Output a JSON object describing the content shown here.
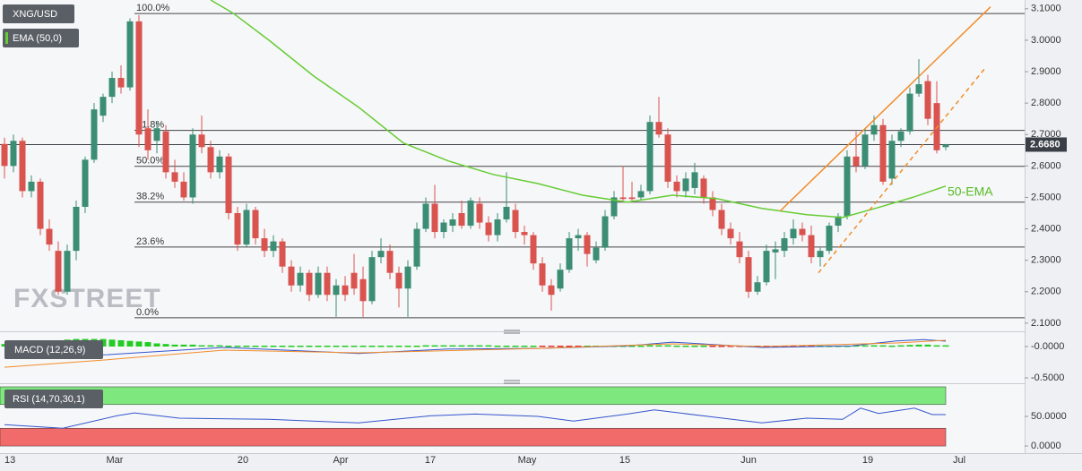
{
  "chart_data": [
    {
      "type": "candlestick",
      "title": "XNG/USD",
      "watermark": "FXSTREET",
      "up_color": "#3b8d73",
      "down_color": "#d9534f",
      "candles": [
        [
          2.67,
          2.69,
          2.56,
          2.6
        ],
        [
          2.6,
          2.7,
          2.58,
          2.68
        ],
        [
          2.68,
          2.69,
          2.5,
          2.52
        ],
        [
          2.52,
          2.57,
          2.5,
          2.55
        ],
        [
          2.55,
          2.56,
          2.38,
          2.4
        ],
        [
          2.4,
          2.43,
          2.33,
          2.35
        ],
        [
          2.33,
          2.36,
          2.19,
          2.2
        ],
        [
          2.2,
          2.35,
          2.19,
          2.33
        ],
        [
          2.33,
          2.49,
          2.3,
          2.47
        ],
        [
          2.47,
          2.63,
          2.45,
          2.62
        ],
        [
          2.62,
          2.8,
          2.61,
          2.78
        ],
        [
          2.76,
          2.83,
          2.74,
          2.82
        ],
        [
          2.82,
          2.9,
          2.8,
          2.88
        ],
        [
          2.88,
          2.92,
          2.83,
          2.85
        ],
        [
          2.85,
          3.07,
          2.84,
          3.06
        ],
        [
          3.06,
          3.08,
          2.66,
          2.7
        ],
        [
          2.72,
          2.78,
          2.62,
          2.65
        ],
        [
          2.68,
          2.74,
          2.64,
          2.72
        ],
        [
          2.71,
          2.73,
          2.56,
          2.58
        ],
        [
          2.58,
          2.62,
          2.53,
          2.55
        ],
        [
          2.55,
          2.58,
          2.49,
          2.5
        ],
        [
          2.5,
          2.72,
          2.48,
          2.7
        ],
        [
          2.7,
          2.76,
          2.64,
          2.66
        ],
        [
          2.66,
          2.68,
          2.56,
          2.58
        ],
        [
          2.58,
          2.65,
          2.56,
          2.63
        ],
        [
          2.63,
          2.64,
          2.43,
          2.45
        ],
        [
          2.45,
          2.47,
          2.33,
          2.35
        ],
        [
          2.35,
          2.48,
          2.34,
          2.46
        ],
        [
          2.46,
          2.47,
          2.35,
          2.37
        ],
        [
          2.37,
          2.4,
          2.31,
          2.33
        ],
        [
          2.33,
          2.38,
          2.31,
          2.36
        ],
        [
          2.36,
          2.37,
          2.26,
          2.28
        ],
        [
          2.28,
          2.3,
          2.2,
          2.22
        ],
        [
          2.22,
          2.28,
          2.2,
          2.26
        ],
        [
          2.26,
          2.27,
          2.17,
          2.19
        ],
        [
          2.19,
          2.28,
          2.18,
          2.26
        ],
        [
          2.26,
          2.28,
          2.17,
          2.19
        ],
        [
          2.19,
          2.24,
          2.12,
          2.22
        ],
        [
          2.22,
          2.25,
          2.17,
          2.19
        ],
        [
          2.26,
          2.32,
          2.19,
          2.21
        ],
        [
          2.24,
          2.28,
          2.12,
          2.17
        ],
        [
          2.17,
          2.33,
          2.16,
          2.31
        ],
        [
          2.31,
          2.37,
          2.29,
          2.33
        ],
        [
          2.33,
          2.35,
          2.24,
          2.26
        ],
        [
          2.26,
          2.28,
          2.15,
          2.21
        ],
        [
          2.21,
          2.3,
          2.12,
          2.28
        ],
        [
          2.28,
          2.42,
          2.27,
          2.4
        ],
        [
          2.4,
          2.5,
          2.39,
          2.48
        ],
        [
          2.48,
          2.54,
          2.37,
          2.39
        ],
        [
          2.39,
          2.43,
          2.37,
          2.42
        ],
        [
          2.41,
          2.45,
          2.39,
          2.43
        ],
        [
          2.45,
          2.49,
          2.4,
          2.41
        ],
        [
          2.41,
          2.5,
          2.4,
          2.49
        ],
        [
          2.48,
          2.5,
          2.4,
          2.42
        ],
        [
          2.42,
          2.44,
          2.36,
          2.38
        ],
        [
          2.38,
          2.45,
          2.36,
          2.43
        ],
        [
          2.43,
          2.58,
          2.42,
          2.47
        ],
        [
          2.46,
          2.48,
          2.37,
          2.39
        ],
        [
          2.39,
          2.41,
          2.35,
          2.38
        ],
        [
          2.38,
          2.39,
          2.27,
          2.29
        ],
        [
          2.29,
          2.31,
          2.2,
          2.22
        ],
        [
          2.22,
          2.24,
          2.14,
          2.19
        ],
        [
          2.21,
          2.29,
          2.2,
          2.27
        ],
        [
          2.27,
          2.39,
          2.26,
          2.37
        ],
        [
          2.37,
          2.4,
          2.33,
          2.38
        ],
        [
          2.38,
          2.39,
          2.28,
          2.32
        ],
        [
          2.3,
          2.36,
          2.29,
          2.34
        ],
        [
          2.34,
          2.46,
          2.33,
          2.44
        ],
        [
          2.44,
          2.52,
          2.43,
          2.5
        ],
        [
          2.5,
          2.6,
          2.49,
          2.495
        ],
        [
          2.5,
          2.55,
          2.49,
          2.495
        ],
        [
          2.5,
          2.54,
          2.49,
          2.52
        ],
        [
          2.52,
          2.76,
          2.51,
          2.74
        ],
        [
          2.74,
          2.82,
          2.69,
          2.7
        ],
        [
          2.7,
          2.72,
          2.53,
          2.55
        ],
        [
          2.55,
          2.57,
          2.5,
          2.52
        ],
        [
          2.52,
          2.58,
          2.5,
          2.56
        ],
        [
          2.53,
          2.61,
          2.51,
          2.58
        ],
        [
          2.56,
          2.57,
          2.48,
          2.5
        ],
        [
          2.5,
          2.52,
          2.44,
          2.46
        ],
        [
          2.46,
          2.48,
          2.38,
          2.4
        ],
        [
          2.4,
          2.42,
          2.35,
          2.37
        ],
        [
          2.36,
          2.39,
          2.29,
          2.31
        ],
        [
          2.31,
          2.33,
          2.18,
          2.2
        ],
        [
          2.2,
          2.25,
          2.19,
          2.23
        ],
        [
          2.23,
          2.35,
          2.22,
          2.33
        ],
        [
          2.325,
          2.36,
          2.24,
          2.335
        ],
        [
          2.33,
          2.39,
          2.31,
          2.37
        ],
        [
          2.37,
          2.43,
          2.35,
          2.4
        ],
        [
          2.4,
          2.42,
          2.36,
          2.38
        ],
        [
          2.38,
          2.41,
          2.29,
          2.31
        ],
        [
          2.31,
          2.34,
          2.28,
          2.33
        ],
        [
          2.33,
          2.42,
          2.32,
          2.41
        ],
        [
          2.41,
          2.45,
          2.39,
          2.44
        ],
        [
          2.44,
          2.65,
          2.43,
          2.63
        ],
        [
          2.63,
          2.71,
          2.58,
          2.6
        ],
        [
          2.6,
          2.72,
          2.59,
          2.7
        ],
        [
          2.7,
          2.76,
          2.68,
          2.73
        ],
        [
          2.73,
          2.75,
          2.54,
          2.55
        ],
        [
          2.56,
          2.7,
          2.54,
          2.68
        ],
        [
          2.68,
          2.72,
          2.66,
          2.71
        ],
        [
          2.71,
          2.85,
          2.7,
          2.83
        ],
        [
          2.83,
          2.94,
          2.82,
          2.86
        ],
        [
          2.87,
          2.89,
          2.73,
          2.75
        ],
        [
          2.8,
          2.87,
          2.64,
          2.65
        ],
        [
          2.66,
          2.67,
          2.65,
          2.668
        ]
      ],
      "xlim": [
        -0.5,
        113.8
      ],
      "xticks": [
        {
          "value": 0,
          "label": "13"
        },
        {
          "value": 12.3,
          "label": "Mar"
        },
        {
          "value": 26.6,
          "label": "20"
        },
        {
          "value": 37.5,
          "label": "Apr"
        },
        {
          "value": 47.5,
          "label": "17"
        },
        {
          "value": 58.3,
          "label": "May"
        },
        {
          "value": 69.2,
          "label": "15"
        },
        {
          "value": 83,
          "label": "Jun"
        },
        {
          "value": 96.3,
          "label": "19"
        },
        {
          "value": 106.5,
          "label": "Jul"
        }
      ],
      "ylim": [
        2.074,
        3.128
      ],
      "yticks": [
        {
          "value": 3.1,
          "label": "3.1000"
        },
        {
          "value": 3.0,
          "label": "3.0000"
        },
        {
          "value": 2.9,
          "label": "2.9000"
        },
        {
          "value": 2.8,
          "label": "2.8000"
        },
        {
          "value": 2.7,
          "label": "2.7000"
        },
        {
          "value": 2.6,
          "label": "2.6000"
        },
        {
          "value": 2.5,
          "label": "2.5000"
        },
        {
          "value": 2.4,
          "label": "2.4000"
        },
        {
          "value": 2.3,
          "label": "2.3000"
        },
        {
          "value": 2.2,
          "label": "2.2000"
        },
        {
          "value": 2.1,
          "label": "2.1000"
        }
      ],
      "last_price": {
        "value": 2.668,
        "label": "2.6680"
      },
      "ema": {
        "name": "EMA (50,0)",
        "color": "#66cc33",
        "x": [
          23,
          25.5,
          29.5,
          34.5,
          39.5,
          44.5,
          49.5,
          54.5,
          59.5,
          64.5,
          69.5,
          74.5,
          79.5,
          84.5,
          89.5,
          93.5,
          97.5,
          101.5,
          105
        ],
        "values": [
          3.128,
          3.086,
          3.0,
          2.886,
          2.787,
          2.673,
          2.616,
          2.573,
          2.544,
          2.507,
          2.485,
          2.507,
          2.496,
          2.465,
          2.445,
          2.436,
          2.468,
          2.502,
          2.536
        ]
      },
      "annotation": "50-EMA",
      "fib_levels": [
        {
          "label": "100.0%",
          "value": 3.085
        },
        {
          "label": "61.8%",
          "value": 2.713
        },
        {
          "label": "50.0%",
          "value": 2.599
        },
        {
          "label": "38.2%",
          "value": 2.485
        },
        {
          "label": "23.6%",
          "value": 2.342
        },
        {
          "label": "0.0%",
          "value": 2.117
        }
      ],
      "trendlines": [
        {
          "color": "#f28c28",
          "dashed": false,
          "x": [
            86.5,
            110
          ],
          "values": [
            2.456,
            3.106
          ]
        },
        {
          "color": "#f28c28",
          "dashed": true,
          "x": [
            90.8,
            109.5
          ],
          "values": [
            2.26,
            2.915
          ]
        }
      ]
    },
    {
      "type": "macd",
      "name": "MACD (12,26,9)",
      "up_color": "#22cc22",
      "down_color": "#e03030",
      "histogram": [
        0.04,
        0.05,
        0.06,
        0.07,
        0.08,
        0.09,
        0.1,
        0.11,
        0.12,
        0.12,
        0.12,
        0.12,
        0.11,
        0.1,
        0.09,
        0.08,
        0.07,
        0.05,
        0.04,
        0.03,
        0.03,
        0.03,
        0.02,
        0.02,
        0.02,
        0.01,
        0.01,
        0.01,
        0,
        0,
        0,
        0,
        0,
        0,
        0,
        0,
        0,
        0,
        0,
        0,
        0,
        0.005,
        0.01,
        0.01,
        0.01,
        0.01,
        0.01,
        0.02,
        0.02,
        0.02,
        0.02,
        0.02,
        0.02,
        0.02,
        0.02,
        0.01,
        0.01,
        0.01,
        0,
        0,
        -0.005,
        -0.01,
        -0.01,
        -0.01,
        -0.005,
        0,
        0,
        0.005,
        0.01,
        0.01,
        0.015,
        0.015,
        0.02,
        0.02,
        0.02,
        0.015,
        0.01,
        0.005,
        0,
        -0.005,
        -0.01,
        -0.015,
        -0.02,
        -0.02,
        -0.02,
        -0.02,
        -0.015,
        -0.01,
        -0.01,
        -0.005,
        -0.005,
        0,
        0,
        0.005,
        0.01,
        0.02,
        0.02,
        0.02,
        0.02,
        0.015,
        0.02,
        0.025,
        0.03,
        0.03,
        0.02,
        0.02
      ],
      "macd": {
        "color": "#3355cc",
        "x": [
          0,
          11.5,
          24.5,
          39.5,
          49.5,
          59.5,
          69.5,
          74.5,
          84.5,
          94.5,
          99.5,
          102.5,
          105
        ],
        "values": [
          -0.186,
          -0.13,
          -0.014,
          -0.11,
          -0.04,
          -0.03,
          0.01,
          0.07,
          -0.014,
          0.01,
          0.09,
          0.11,
          0.086
        ]
      },
      "signal": {
        "color": "#f28c28",
        "x": [
          0,
          11.5,
          24.5,
          39.5,
          59.5,
          74.5,
          84.5,
          99.5,
          105
        ],
        "values": [
          -0.33,
          -0.21,
          -0.057,
          -0.1,
          -0.03,
          0.043,
          0,
          0.057,
          0.1
        ]
      },
      "ylim": [
        -0.571,
        0.214
      ],
      "yticks": [
        {
          "value": 0,
          "label": "-0.0000"
        },
        {
          "value": -0.5,
          "label": "-0.5000"
        }
      ]
    },
    {
      "type": "rsi",
      "name": "RSI (14,70,30,1)",
      "color": "#3355cc",
      "band_colors": [
        "#7ee87e",
        "#f26b6b"
      ],
      "range": [
        0,
        100
      ],
      "overbought": 70,
      "oversold": 30,
      "x": [
        0,
        6.5,
        12.5,
        14.5,
        19.5,
        29.5,
        39.5,
        47.5,
        52.5,
        59.5,
        63.5,
        69.5,
        72.5,
        79.5,
        84.5,
        89.5,
        93.5,
        95.5,
        97.5,
        101.5,
        103.5,
        105
      ],
      "values": [
        36,
        30,
        51,
        56,
        47,
        45,
        39,
        51,
        54,
        50,
        42,
        54,
        61,
        48,
        39,
        47,
        45,
        64,
        55,
        64,
        53,
        53
      ],
      "ylim": [
        -12,
        103
      ],
      "yticks": [
        {
          "value": 50,
          "label": "50.0000"
        },
        {
          "value": 0,
          "label": "0.0000"
        }
      ]
    }
  ]
}
